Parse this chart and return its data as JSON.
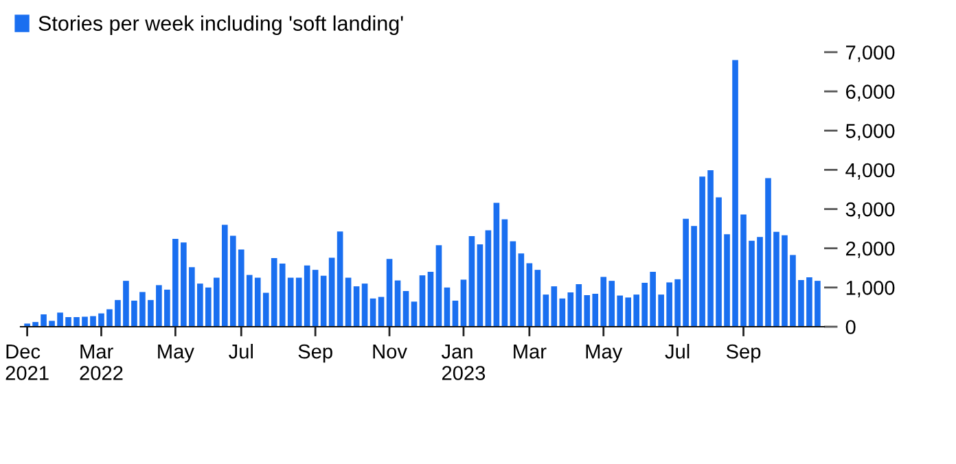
{
  "chart_data": {
    "type": "bar",
    "categories": [
      "Dec\n2021",
      null,
      null,
      null,
      null,
      null,
      null,
      null,
      null,
      "Mar\n2022",
      null,
      null,
      null,
      null,
      null,
      null,
      null,
      null,
      "May",
      null,
      null,
      null,
      null,
      null,
      null,
      null,
      "Jul",
      null,
      null,
      null,
      null,
      null,
      null,
      null,
      null,
      "Sep",
      null,
      null,
      null,
      null,
      null,
      null,
      null,
      null,
      "Nov",
      null,
      null,
      null,
      null,
      null,
      null,
      null,
      null,
      "Jan\n2023",
      null,
      null,
      null,
      null,
      null,
      null,
      null,
      "Mar",
      null,
      null,
      null,
      null,
      null,
      null,
      null,
      null,
      "May",
      null,
      null,
      null,
      null,
      null,
      null,
      null,
      null,
      "Jul",
      null,
      null,
      null,
      null,
      null,
      null,
      null,
      "Sep",
      null,
      null,
      null,
      null,
      null,
      null,
      null,
      null,
      null
    ],
    "series": [
      {
        "name": "Stories per week including 'soft landing'",
        "color": "#1a6ff0",
        "values": [
          80,
          120,
          315,
          150,
          360,
          245,
          245,
          255,
          270,
          340,
          445,
          680,
          1170,
          665,
          885,
          680,
          1060,
          945,
          2240,
          2150,
          1520,
          1100,
          1000,
          1250,
          2600,
          2320,
          1970,
          1320,
          1250,
          865,
          1750,
          1610,
          1250,
          1250,
          1560,
          1450,
          1300,
          1760,
          2430,
          1250,
          1030,
          1100,
          720,
          760,
          1730,
          1180,
          910,
          640,
          1310,
          1400,
          2080,
          1000,
          665,
          1200,
          2310,
          2100,
          2460,
          3160,
          2740,
          2180,
          1870,
          1620,
          1450,
          820,
          1030,
          720,
          875,
          1085,
          805,
          840,
          1270,
          1170,
          795,
          745,
          820,
          1120,
          1400,
          820,
          1130,
          1210,
          2750,
          2570,
          3830,
          3990,
          3300,
          2360,
          6800,
          2860,
          2190,
          2290,
          3790,
          2420,
          2330,
          1830,
          1190,
          1260,
          1170
        ]
      }
    ],
    "ylim": [
      0,
      7000
    ],
    "yticks": [
      0,
      {
        "value": 1000,
        "label": "1,000"
      },
      {
        "value": 2000,
        "label": "2,000"
      },
      {
        "value": 3000,
        "label": "3,000"
      },
      {
        "value": 4000,
        "label": "4,000"
      },
      {
        "value": 5000,
        "label": "5,000"
      },
      {
        "value": 6000,
        "label": "6,000"
      },
      {
        "value": 7000,
        "label": "7,000"
      }
    ],
    "grid": false,
    "legend": "top left"
  }
}
